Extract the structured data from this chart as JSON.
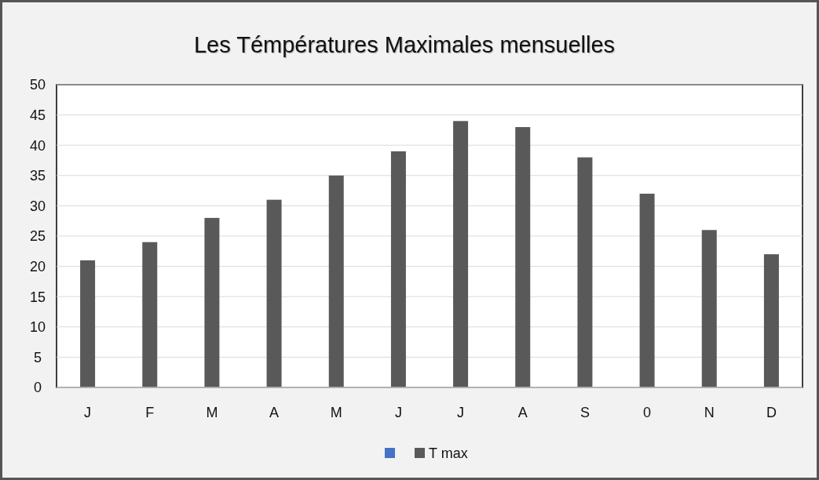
{
  "chart_data": {
    "type": "bar",
    "title": "Les Témpératures Maximales mensuelles",
    "categories": [
      "J",
      "F",
      "M",
      "A",
      "M",
      "J",
      "J",
      "A",
      "S",
      "0",
      "N",
      "D"
    ],
    "series": [
      {
        "color": "#4472c4",
        "values": [
          null,
          null,
          null,
          null,
          null,
          null,
          null,
          null,
          null,
          null,
          null,
          null
        ]
      },
      {
        "name": "T max",
        "color": "#595959",
        "values": [
          21,
          24,
          28,
          31,
          35,
          39,
          44,
          43,
          38,
          32,
          26,
          22
        ]
      }
    ],
    "ylim": [
      0,
      50
    ],
    "yticks": [
      0,
      5,
      10,
      15,
      20,
      25,
      30,
      35,
      40,
      45,
      50
    ],
    "grid": "y",
    "legend": "bottom"
  }
}
